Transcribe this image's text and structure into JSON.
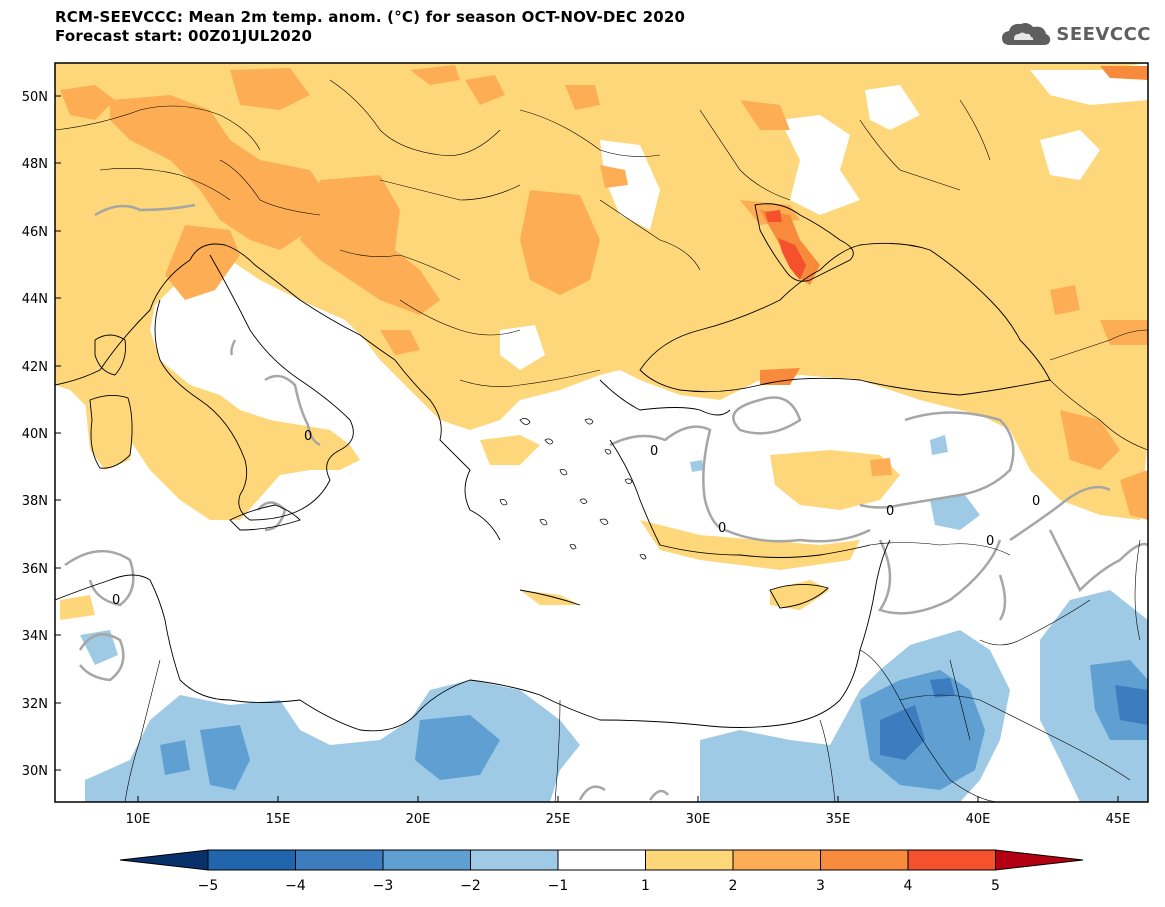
{
  "header": {
    "title_line1": "RCM-SEEVCCC: Mean 2m temp. anom. (°C) for season OCT-NOV-DEC 2020",
    "title_line2": "Forecast start: 00Z01JUL2020",
    "logo_text": "SEEVCCC"
  },
  "map": {
    "lon_range": [
      7,
      46
    ],
    "lat_range": [
      29,
      51
    ],
    "lon_ticks": [
      "10E",
      "15E",
      "20E",
      "25E",
      "30E",
      "35E",
      "40E",
      "45E"
    ],
    "lat_ticks": [
      "50N",
      "48N",
      "46N",
      "44N",
      "42N",
      "40N",
      "38N",
      "36N",
      "34N",
      "32N",
      "30N"
    ],
    "contour_label": "0"
  },
  "colorbar": {
    "labels": [
      "−5",
      "−4",
      "−3",
      "−2",
      "−1",
      "1",
      "2",
      "3",
      "4",
      "5"
    ],
    "colors": [
      "#2166ac",
      "#3d7dbf",
      "#5f9fd2",
      "#9ecae6",
      "#ffffff",
      "#fdd77a",
      "#fdae55",
      "#f88a3c",
      "#f4512c",
      "#d7191c"
    ],
    "under_color": "#08306b",
    "over_color": "#b30012"
  }
}
